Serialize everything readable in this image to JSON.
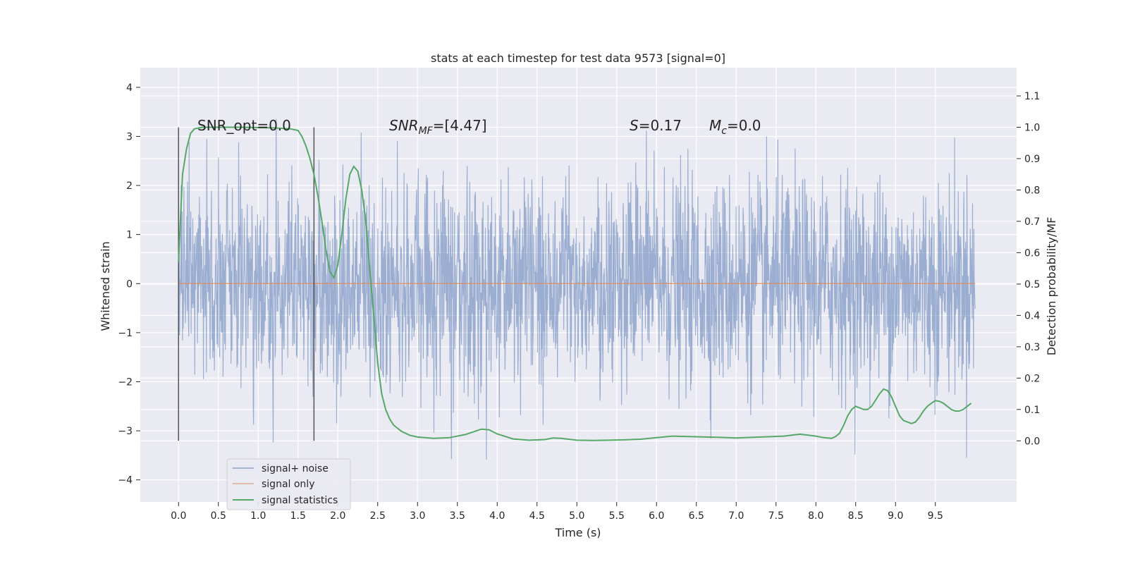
{
  "chart_data": {
    "type": "line",
    "title": "stats at each timestep for test data 9573 [signal=0]",
    "xlabel": "Time (s)",
    "ylabel": "Whitened strain",
    "y2label": "Detection probability/MF",
    "xlim": [
      -0.48,
      10.52
    ],
    "ylim": [
      -4.45,
      4.4
    ],
    "y2lim": [
      -0.195,
      1.19
    ],
    "x_ticks": [
      "0.0",
      "0.5",
      "1.0",
      "1.5",
      "2.0",
      "2.5",
      "3.0",
      "3.5",
      "4.0",
      "4.5",
      "5.0",
      "5.5",
      "6.0",
      "6.5",
      "7.0",
      "7.5",
      "8.0",
      "8.5",
      "9.0",
      "9.5"
    ],
    "y_ticks": [
      "4",
      "3",
      "2",
      "1",
      "0",
      "−1",
      "−2",
      "−3",
      "−4"
    ],
    "y2_ticks": [
      "1.1",
      "1.0",
      "0.9",
      "0.8",
      "0.7",
      "0.6",
      "0.5",
      "0.4",
      "0.3",
      "0.2",
      "0.1",
      "0.0"
    ],
    "grid": true,
    "legend_position": "lower-left",
    "annotations": {
      "snr_opt": "SNR_opt=0.0",
      "snr_mf_base": "SNR",
      "snr_mf_sub": "MF",
      "snr_mf_value": "=[4.47]",
      "s_symbol": "S",
      "s_value": "=0.17",
      "mc_symbol": "M",
      "mc_sub": "c",
      "mc_value": "=0.0"
    },
    "vlines": [
      0.0,
      1.7
    ],
    "series": [
      {
        "name": "signal+ noise",
        "color": "#4c72b0",
        "x_range": [
          0.0,
          10.0
        ],
        "envelope_note": "whitened noise, amplitude ~ ±2.5 typical, peaks to ±4"
      },
      {
        "name": "signal only",
        "color": "#dd8452",
        "x": [
          0.0,
          10.0
        ],
        "y": [
          0.0,
          0.0
        ]
      },
      {
        "name": "signal statistics",
        "color": "#55a868",
        "axis": "right",
        "x": [
          0.0,
          0.05,
          0.1,
          0.15,
          0.2,
          0.3,
          0.5,
          0.8,
          1.0,
          1.2,
          1.4,
          1.5,
          1.55,
          1.6,
          1.65,
          1.7,
          1.75,
          1.8,
          1.85,
          1.9,
          1.95,
          2.0,
          2.05,
          2.1,
          2.15,
          2.2,
          2.25,
          2.3,
          2.35,
          2.4,
          2.45,
          2.5,
          2.55,
          2.6,
          2.65,
          2.7,
          2.8,
          2.9,
          3.0,
          3.2,
          3.4,
          3.6,
          3.8,
          3.9,
          4.0,
          4.2,
          4.4,
          4.6,
          4.7,
          4.8,
          5.0,
          5.2,
          5.4,
          5.6,
          5.8,
          6.0,
          6.2,
          6.5,
          6.8,
          7.0,
          7.3,
          7.6,
          7.8,
          8.0,
          8.1,
          8.2,
          8.25,
          8.3,
          8.35,
          8.4,
          8.45,
          8.5,
          8.55,
          8.6,
          8.65,
          8.7,
          8.75,
          8.8,
          8.85,
          8.9,
          8.95,
          9.0,
          9.05,
          9.1,
          9.15,
          9.2,
          9.25,
          9.3,
          9.35,
          9.4,
          9.45,
          9.5,
          9.55,
          9.6,
          9.65,
          9.7,
          9.75,
          9.8,
          9.85,
          9.9,
          9.95
        ],
        "y": [
          0.57,
          0.85,
          0.93,
          0.98,
          0.995,
          1.0,
          1.0,
          1.0,
          0.999,
          0.998,
          0.995,
          0.99,
          0.97,
          0.94,
          0.9,
          0.85,
          0.78,
          0.7,
          0.61,
          0.54,
          0.52,
          0.56,
          0.66,
          0.77,
          0.85,
          0.875,
          0.86,
          0.8,
          0.7,
          0.55,
          0.4,
          0.25,
          0.15,
          0.1,
          0.07,
          0.05,
          0.03,
          0.018,
          0.012,
          0.008,
          0.01,
          0.02,
          0.037,
          0.035,
          0.022,
          0.006,
          0.002,
          0.004,
          0.009,
          0.008,
          0.002,
          0.001,
          0.002,
          0.003,
          0.005,
          0.01,
          0.015,
          0.013,
          0.011,
          0.009,
          0.012,
          0.015,
          0.021,
          0.015,
          0.01,
          0.008,
          0.014,
          0.025,
          0.05,
          0.08,
          0.1,
          0.11,
          0.105,
          0.1,
          0.1,
          0.11,
          0.13,
          0.15,
          0.165,
          0.16,
          0.14,
          0.11,
          0.08,
          0.065,
          0.06,
          0.055,
          0.06,
          0.075,
          0.095,
          0.11,
          0.12,
          0.128,
          0.126,
          0.12,
          0.11,
          0.1,
          0.095,
          0.095,
          0.1,
          0.11,
          0.12
        ]
      }
    ]
  }
}
